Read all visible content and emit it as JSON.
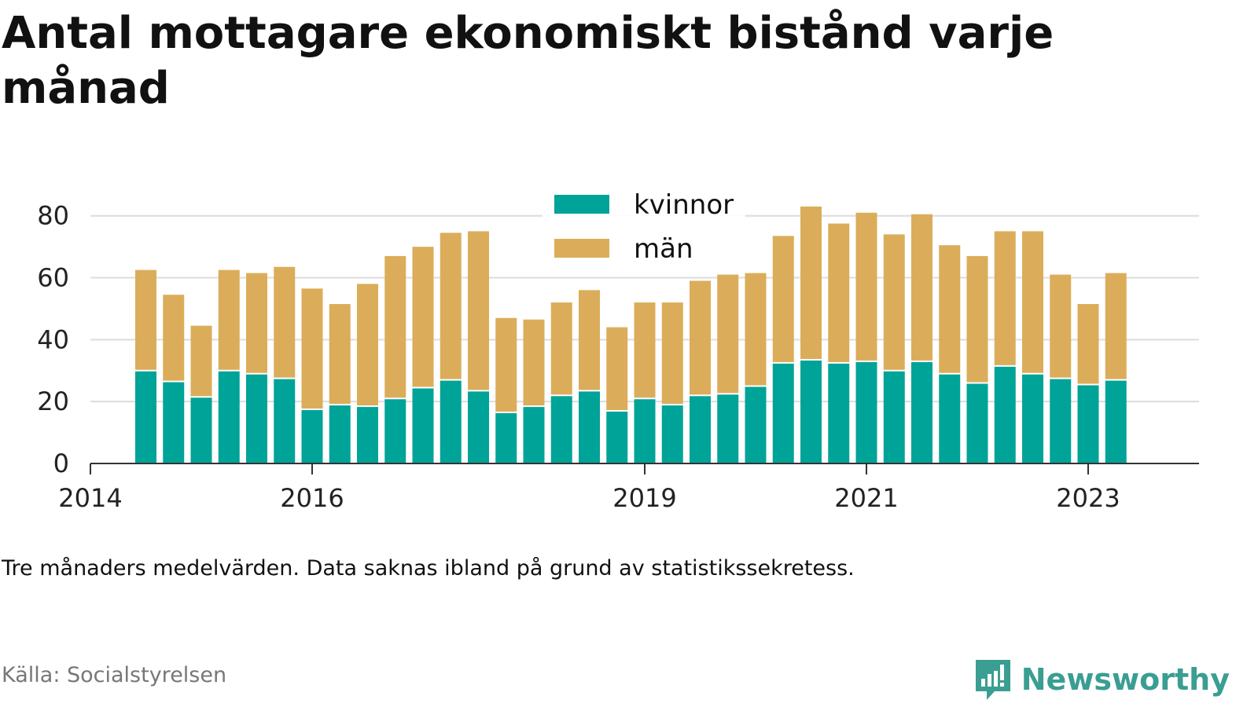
{
  "title": "Antal mottagare ekonomiskt bistånd varje månad",
  "caption": "Tre månaders medelvärden. Data saknas ibland på grund av statistikssekretess.",
  "source": "Källa: Socialstyrelsen",
  "brand": "Newsworthy",
  "colors": {
    "kvinnor": "#00a398",
    "man": "#dbad5a",
    "grid": "#dcdcdc",
    "axis": "#333333",
    "brand": "#3a9e92"
  },
  "chart_data": {
    "type": "bar",
    "stacked": true,
    "ylim": [
      0,
      85
    ],
    "yticks": [
      0,
      20,
      40,
      60,
      80
    ],
    "xlim": [
      "2014-01",
      "2024-01"
    ],
    "xticks": [
      "2014",
      "2016",
      "2019",
      "2021",
      "2023"
    ],
    "xtick_dates": [
      "2014-01",
      "2016-01",
      "2019-01",
      "2021-01",
      "2023-01"
    ],
    "legend": {
      "position": "top-center"
    },
    "grid": true,
    "x": [
      "2014-07",
      "2014-10",
      "2015-01",
      "2015-04",
      "2015-07",
      "2015-10",
      "2016-01",
      "2016-04",
      "2016-07",
      "2016-10",
      "2017-01",
      "2017-04",
      "2017-07",
      "2017-10",
      "2018-01",
      "2018-04",
      "2018-07",
      "2018-10",
      "2019-01",
      "2019-04",
      "2019-07",
      "2019-10",
      "2020-01",
      "2020-04",
      "2020-07",
      "2020-10",
      "2021-01",
      "2021-04",
      "2021-07",
      "2021-10",
      "2022-01",
      "2022-04",
      "2022-07",
      "2022-10",
      "2023-01",
      "2023-04"
    ],
    "series": [
      {
        "name": "kvinnor",
        "values": [
          30,
          26.5,
          21.5,
          30,
          29,
          27.5,
          17.5,
          19,
          18.5,
          21,
          24.5,
          27,
          23.5,
          16.5,
          18.5,
          22,
          23.5,
          17,
          21,
          19,
          22,
          22.5,
          25,
          32.5,
          33.5,
          32.5,
          33,
          30,
          33,
          29,
          26,
          31.5,
          29,
          27.5,
          25.5,
          27
        ]
      },
      {
        "name": "män",
        "values": [
          32.5,
          28,
          23,
          32.5,
          32.5,
          36,
          39,
          32.5,
          39.5,
          46,
          45.5,
          47.5,
          51.5,
          30.5,
          28,
          30,
          32.5,
          27,
          31,
          33,
          37,
          38.5,
          36.5,
          41,
          49.5,
          45,
          48,
          44,
          47.5,
          41.5,
          41,
          43.5,
          46,
          33.5,
          26,
          34.5
        ]
      }
    ]
  }
}
